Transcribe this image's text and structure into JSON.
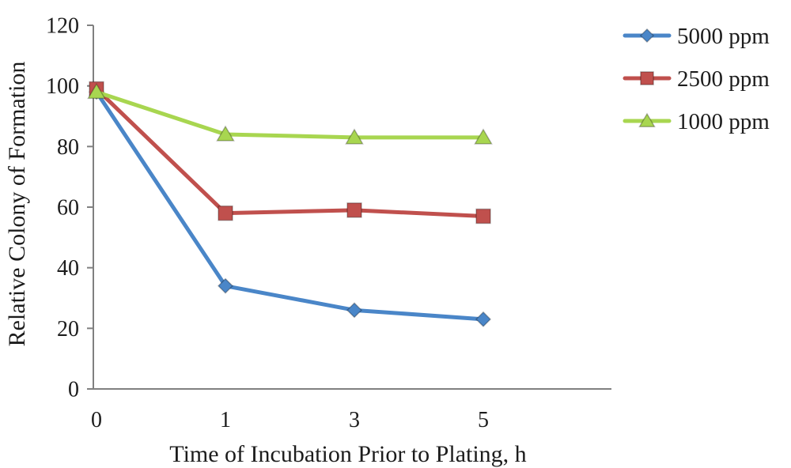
{
  "chart_data": {
    "type": "line",
    "categories": [
      "0",
      "1",
      "3",
      "5"
    ],
    "xlabel": "Time of Incubation Prior to Plating, h",
    "ylabel": "Relative Colony of Formation",
    "ylim": [
      0,
      120
    ],
    "yticks": [
      0,
      20,
      40,
      60,
      80,
      100,
      120
    ],
    "grid": false,
    "legend_position": "right",
    "series": [
      {
        "name": "5000 ppm",
        "values": [
          98,
          34,
          26,
          23
        ],
        "color": "#4A86C8",
        "marker": "diamond"
      },
      {
        "name": "2500 ppm",
        "values": [
          99,
          58,
          59,
          57
        ],
        "color": "#C0504D",
        "marker": "square"
      },
      {
        "name": "1000 ppm",
        "values": [
          98,
          84,
          83,
          83
        ],
        "color": "#A8D650",
        "marker": "triangle"
      }
    ]
  }
}
